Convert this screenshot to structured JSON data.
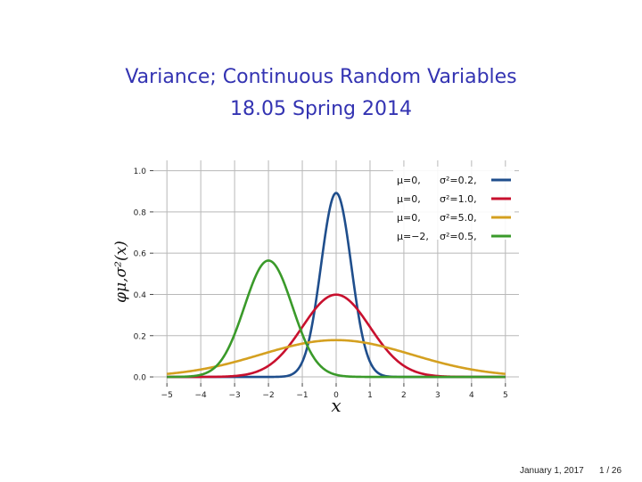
{
  "slide": {
    "title": "Variance; Continuous Random Variables",
    "subtitle": "18.05 Spring 2014",
    "date": "January 1, 2017",
    "page": "1 / 26"
  },
  "chart_data": {
    "type": "line",
    "title": "",
    "xlabel": "x",
    "ylabel": "φμ,σ²(x)",
    "xlim": [
      -5.4,
      5.4
    ],
    "ylim": [
      -0.03,
      1.05
    ],
    "x_ticks": [
      "−5",
      "−4",
      "−3",
      "−2",
      "−1",
      "0",
      "1",
      "2",
      "3",
      "4",
      "5"
    ],
    "y_ticks": [
      "0.0",
      "0.2",
      "0.4",
      "0.6",
      "0.8",
      "1.0"
    ],
    "grid": true,
    "legend_position": "top-right",
    "series": [
      {
        "name": "μ=0, σ²=0.2",
        "label_mu": "μ=0,",
        "label_var": "σ²=0.2,",
        "mu": 0,
        "variance": 0.2,
        "color": "#1f4e8c",
        "x": [
          -5,
          -4,
          -3,
          -2,
          -1.5,
          -1,
          -0.75,
          -0.5,
          -0.25,
          0,
          0.25,
          0.5,
          0.75,
          1,
          1.5,
          2,
          3,
          4,
          5
        ],
        "y": [
          0,
          0,
          0,
          0,
          0.003,
          0.07,
          0.21,
          0.48,
          0.76,
          0.89,
          0.76,
          0.48,
          0.21,
          0.07,
          0.003,
          0,
          0,
          0,
          0
        ]
      },
      {
        "name": "μ=0, σ²=1.0",
        "label_mu": "μ=0,",
        "label_var": "σ²=1.0,",
        "mu": 0,
        "variance": 1.0,
        "color": "#c8102e",
        "x": [
          -5,
          -4,
          -3,
          -2.5,
          -2,
          -1.5,
          -1,
          -0.5,
          0,
          0.5,
          1,
          1.5,
          2,
          2.5,
          3,
          4,
          5
        ],
        "y": [
          0,
          0,
          0.004,
          0.018,
          0.054,
          0.13,
          0.24,
          0.35,
          0.4,
          0.35,
          0.24,
          0.13,
          0.054,
          0.018,
          0.004,
          0,
          0
        ]
      },
      {
        "name": "μ=0, σ²=5.0",
        "label_mu": "μ=0,",
        "label_var": "σ²=5.0,",
        "mu": 0,
        "variance": 5.0,
        "color": "#d4a020",
        "x": [
          -5,
          -4,
          -3,
          -2,
          -1,
          0,
          1,
          2,
          3,
          4,
          5
        ],
        "y": [
          0.015,
          0.037,
          0.073,
          0.119,
          0.161,
          0.178,
          0.161,
          0.119,
          0.073,
          0.037,
          0.015
        ]
      },
      {
        "name": "μ=−2, σ²=0.5",
        "label_mu": "μ=−2,",
        "label_var": "σ²=0.5,",
        "mu": -2,
        "variance": 0.5,
        "color": "#3a9a2a",
        "x": [
          -5,
          -4,
          -3.5,
          -3,
          -2.5,
          -2,
          -1.5,
          -1,
          -0.5,
          0,
          1,
          2,
          3,
          4,
          5
        ],
        "y": [
          0,
          0.01,
          0.06,
          0.21,
          0.44,
          0.56,
          0.44,
          0.21,
          0.06,
          0.01,
          0,
          0,
          0,
          0,
          0
        ]
      }
    ]
  }
}
